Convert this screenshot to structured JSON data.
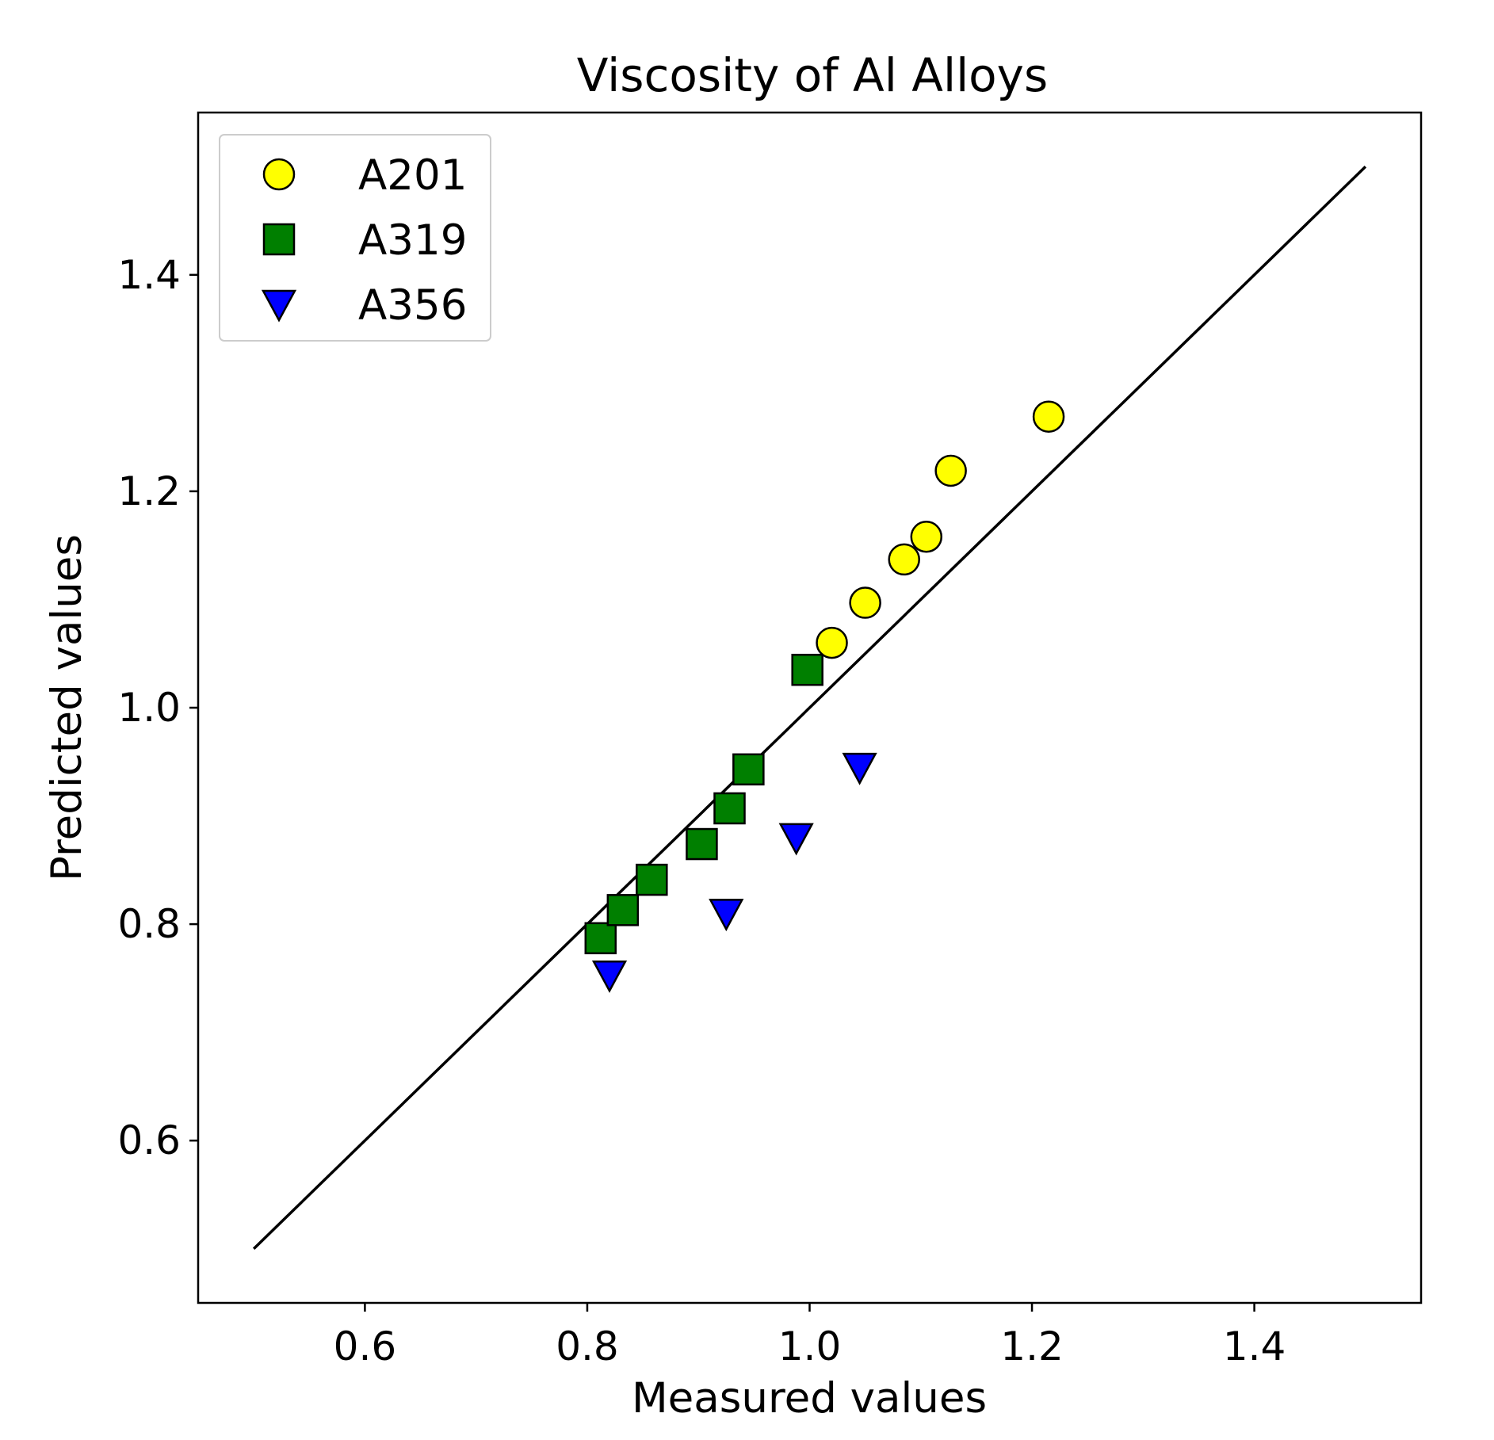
{
  "chart_data": {
    "type": "scatter",
    "title": "Viscosity of Al Alloys",
    "xlabel": "Measured values",
    "ylabel": "Predicted values",
    "xlim": [
      0.45,
      1.55
    ],
    "ylim": [
      0.45,
      1.55
    ],
    "xticks": [
      0.6,
      0.8,
      1.0,
      1.2,
      1.4
    ],
    "yticks": [
      0.6,
      0.8,
      1.0,
      1.2,
      1.4
    ],
    "xtick_labels": [
      "0.6",
      "0.8",
      "1.0",
      "1.2",
      "1.4"
    ],
    "ytick_labels": [
      "0.6",
      "0.8",
      "1.0",
      "1.2",
      "1.4"
    ],
    "grid": false,
    "legend_position": "upper-left",
    "reference_line": {
      "x": [
        0.5,
        1.5
      ],
      "y": [
        0.5,
        1.5
      ],
      "color": "#000000"
    },
    "series": [
      {
        "name": "A201",
        "marker": "circle",
        "color": "#ffff00",
        "x": [
          1.02,
          1.05,
          1.085,
          1.105,
          1.127,
          1.215
        ],
        "y": [
          1.06,
          1.097,
          1.137,
          1.158,
          1.219,
          1.269
        ]
      },
      {
        "name": "A319",
        "marker": "square",
        "color": "#007f00",
        "x": [
          0.812,
          0.832,
          0.858,
          0.903,
          0.928,
          0.945,
          0.998
        ],
        "y": [
          0.787,
          0.813,
          0.841,
          0.874,
          0.907,
          0.943,
          1.035
        ]
      },
      {
        "name": "A356",
        "marker": "triangle-down",
        "color": "#0000ff",
        "x": [
          0.82,
          0.925,
          0.988,
          1.045
        ],
        "y": [
          0.753,
          0.81,
          0.88,
          0.945
        ]
      }
    ]
  }
}
